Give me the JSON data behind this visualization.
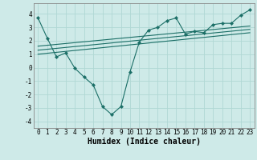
{
  "xlabel": "Humidex (Indice chaleur)",
  "xlim": [
    -0.5,
    23.5
  ],
  "ylim": [
    -4.5,
    4.8
  ],
  "background_color": "#ceeae8",
  "grid_color": "#b0d8d4",
  "line_color": "#1a6e66",
  "series_main": {
    "x": [
      0,
      1,
      2,
      3,
      4,
      5,
      6,
      7,
      8,
      9,
      10,
      11,
      12,
      13,
      14,
      15,
      16,
      17,
      18,
      19,
      20,
      21,
      22,
      23
    ],
    "y": [
      3.7,
      2.2,
      0.8,
      1.1,
      -0.05,
      -0.7,
      -1.3,
      -2.9,
      -3.5,
      -2.9,
      -0.3,
      1.9,
      2.8,
      3.0,
      3.5,
      3.7,
      2.5,
      2.7,
      2.6,
      3.2,
      3.3,
      3.3,
      3.9,
      4.3
    ]
  },
  "series_lines": [
    {
      "x": [
        0,
        23
      ],
      "y": [
        1.6,
        3.1
      ]
    },
    {
      "x": [
        0,
        23
      ],
      "y": [
        1.3,
        2.85
      ]
    },
    {
      "x": [
        0,
        23
      ],
      "y": [
        1.0,
        2.6
      ]
    }
  ],
  "yticks": [
    -4,
    -3,
    -2,
    -1,
    0,
    1,
    2,
    3,
    4
  ],
  "xticks": [
    0,
    1,
    2,
    3,
    4,
    5,
    6,
    7,
    8,
    9,
    10,
    11,
    12,
    13,
    14,
    15,
    16,
    17,
    18,
    19,
    20,
    21,
    22,
    23
  ],
  "tick_fontsize": 5.5,
  "label_fontsize": 7.0
}
